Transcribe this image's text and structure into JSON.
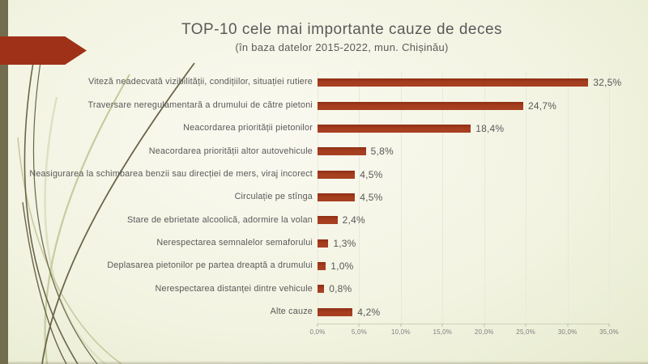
{
  "slide": {
    "title": "TOP-10 cele mai importante cauze de deces",
    "subtitle": "(în baza datelor 2015-2022, mun. Chișinău)"
  },
  "chart_data": {
    "type": "bar",
    "orientation": "horizontal",
    "title": "TOP-10 cele mai importante cauze de deces",
    "subtitle": "(în baza datelor 2015-2022, mun. Chișinău)",
    "categories": [
      "Viteză neadecvată vizibilității, condițiilor, situației rutiere",
      "Traversare neregulamentară a drumului de către pietoni",
      "Neacordarea priorității pietonilor",
      "Neacordarea priorității altor autovehicule",
      "Neasigurarea la schimbarea benzii sau direcției de mers, viraj incorect",
      "Circulație pe stînga",
      "Stare de ebrietate alcoolică, adormire la volan",
      "Nerespectarea semnalelor semaforului",
      "Deplasarea pietonilor pe partea dreaptă a drumului",
      "Nerespectarea distanței dintre vehicule",
      "Alte cauze"
    ],
    "values": [
      32.5,
      24.7,
      18.4,
      5.8,
      4.5,
      4.5,
      2.4,
      1.3,
      1.0,
      0.8,
      4.2
    ],
    "value_labels": [
      "32,5%",
      "24,7%",
      "18,4%",
      "5,8%",
      "4,5%",
      "4,5%",
      "2,4%",
      "1,3%",
      "1,0%",
      "0,8%",
      "4,2%"
    ],
    "xlabel": "",
    "ylabel": "",
    "xlim": [
      0,
      35
    ],
    "x_ticks": [
      0,
      5,
      10,
      15,
      20,
      25,
      30,
      35
    ],
    "x_tick_labels": [
      "0,0%",
      "5,0%",
      "10,0%",
      "15,0%",
      "20,0%",
      "25,0%",
      "30,0%",
      "35,0%"
    ],
    "grid": true,
    "legend": false,
    "bar_color": "#A43C1E",
    "label_color": "#595959"
  },
  "decor": {
    "accent_red": "#9E3118",
    "olive_strip": "#736D4F",
    "curve_dark": "#6A6449",
    "curve_light": "#C6CC9F",
    "curve_pale": "#DDE1C3"
  }
}
